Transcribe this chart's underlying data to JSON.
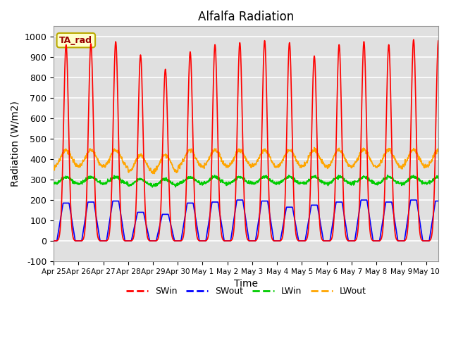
{
  "title": "Alfalfa Radiation",
  "xlabel": "Time",
  "ylabel": "Radiation (W/m2)",
  "ylim": [
    -100,
    1050
  ],
  "legend_label": "TA_rad",
  "colors": {
    "SWin": "#ff0000",
    "SWout": "#0000ff",
    "LWin": "#00cc00",
    "LWout": "#ffa500"
  },
  "xtick_labels": [
    "Apr 25",
    "Apr 26",
    "Apr 27",
    "Apr 28",
    "Apr 29",
    "Apr 30",
    "May 1",
    "May 2",
    "May 3",
    "May 4",
    "May 5",
    "May 6",
    "May 7",
    "May 8",
    "May 9",
    "May 10"
  ],
  "ytick_values": [
    -100,
    0,
    100,
    200,
    300,
    400,
    500,
    600,
    700,
    800,
    900,
    1000
  ],
  "background_color": "#e0e0e0",
  "swin_peaks": [
    960,
    965,
    975,
    910,
    840,
    925,
    960,
    970,
    980,
    970,
    905,
    960,
    975,
    960,
    985,
    980
  ],
  "swout_peaks": [
    185,
    190,
    195,
    140,
    130,
    185,
    190,
    200,
    195,
    165,
    175,
    190,
    200,
    190,
    200,
    195
  ],
  "lwin_base": 278,
  "lwout_base": 350,
  "lwin_day_bump": 35,
  "lwout_day_bump": 95,
  "lwin_sigma": 0.2,
  "lwout_sigma": 0.22,
  "swin_sigma": 0.1,
  "swout_flat_half": 0.12,
  "swout_slope": 0.04,
  "line_width": 1.2,
  "n_days": 16
}
